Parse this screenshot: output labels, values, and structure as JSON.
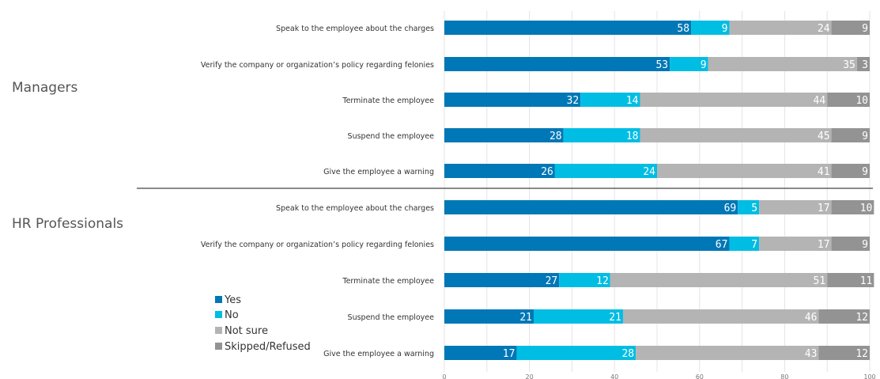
{
  "chart_data": {
    "type": "bar",
    "orientation": "horizontal",
    "stacked": true,
    "groups": [
      {
        "name": "Managers",
        "categories": [
          "Speak to the employee about the charges",
          "Verify the company or organization’s policy regarding felonies",
          "Terminate the employee",
          "Suspend the employee",
          "Give the employee a warning"
        ],
        "series": [
          {
            "name": "Yes",
            "values": [
              58,
              53,
              32,
              28,
              26
            ]
          },
          {
            "name": "No",
            "values": [
              9,
              9,
              14,
              18,
              24
            ]
          },
          {
            "name": "Not sure",
            "values": [
              24,
              35,
              44,
              45,
              41
            ]
          },
          {
            "name": "Skipped/Refused",
            "values": [
              9,
              3,
              10,
              9,
              9
            ]
          }
        ]
      },
      {
        "name": "HR Professionals",
        "categories": [
          "Speak to the employee about the charges",
          "Verify the company or organization’s policy regarding felonies",
          "Terminate the employee",
          "Suspend the employee",
          "Give the employee a warning"
        ],
        "series": [
          {
            "name": "Yes",
            "values": [
              69,
              67,
              27,
              21,
              17
            ]
          },
          {
            "name": "No",
            "values": [
              5,
              7,
              12,
              21,
              28
            ]
          },
          {
            "name": "Not sure",
            "values": [
              17,
              17,
              51,
              46,
              43
            ]
          },
          {
            "name": "Skipped/Refused",
            "values": [
              10,
              9,
              11,
              12,
              12
            ]
          }
        ]
      }
    ],
    "xlim": [
      0,
      100
    ],
    "x_ticks": [
      0,
      20,
      40,
      60,
      80,
      100
    ],
    "grid": true,
    "legend_position": "bottom-left",
    "colors": {
      "Yes": "#0077b6",
      "No": "#00bde3",
      "Not sure": "#b4b4b4",
      "Skipped/Refused": "#939393"
    }
  }
}
